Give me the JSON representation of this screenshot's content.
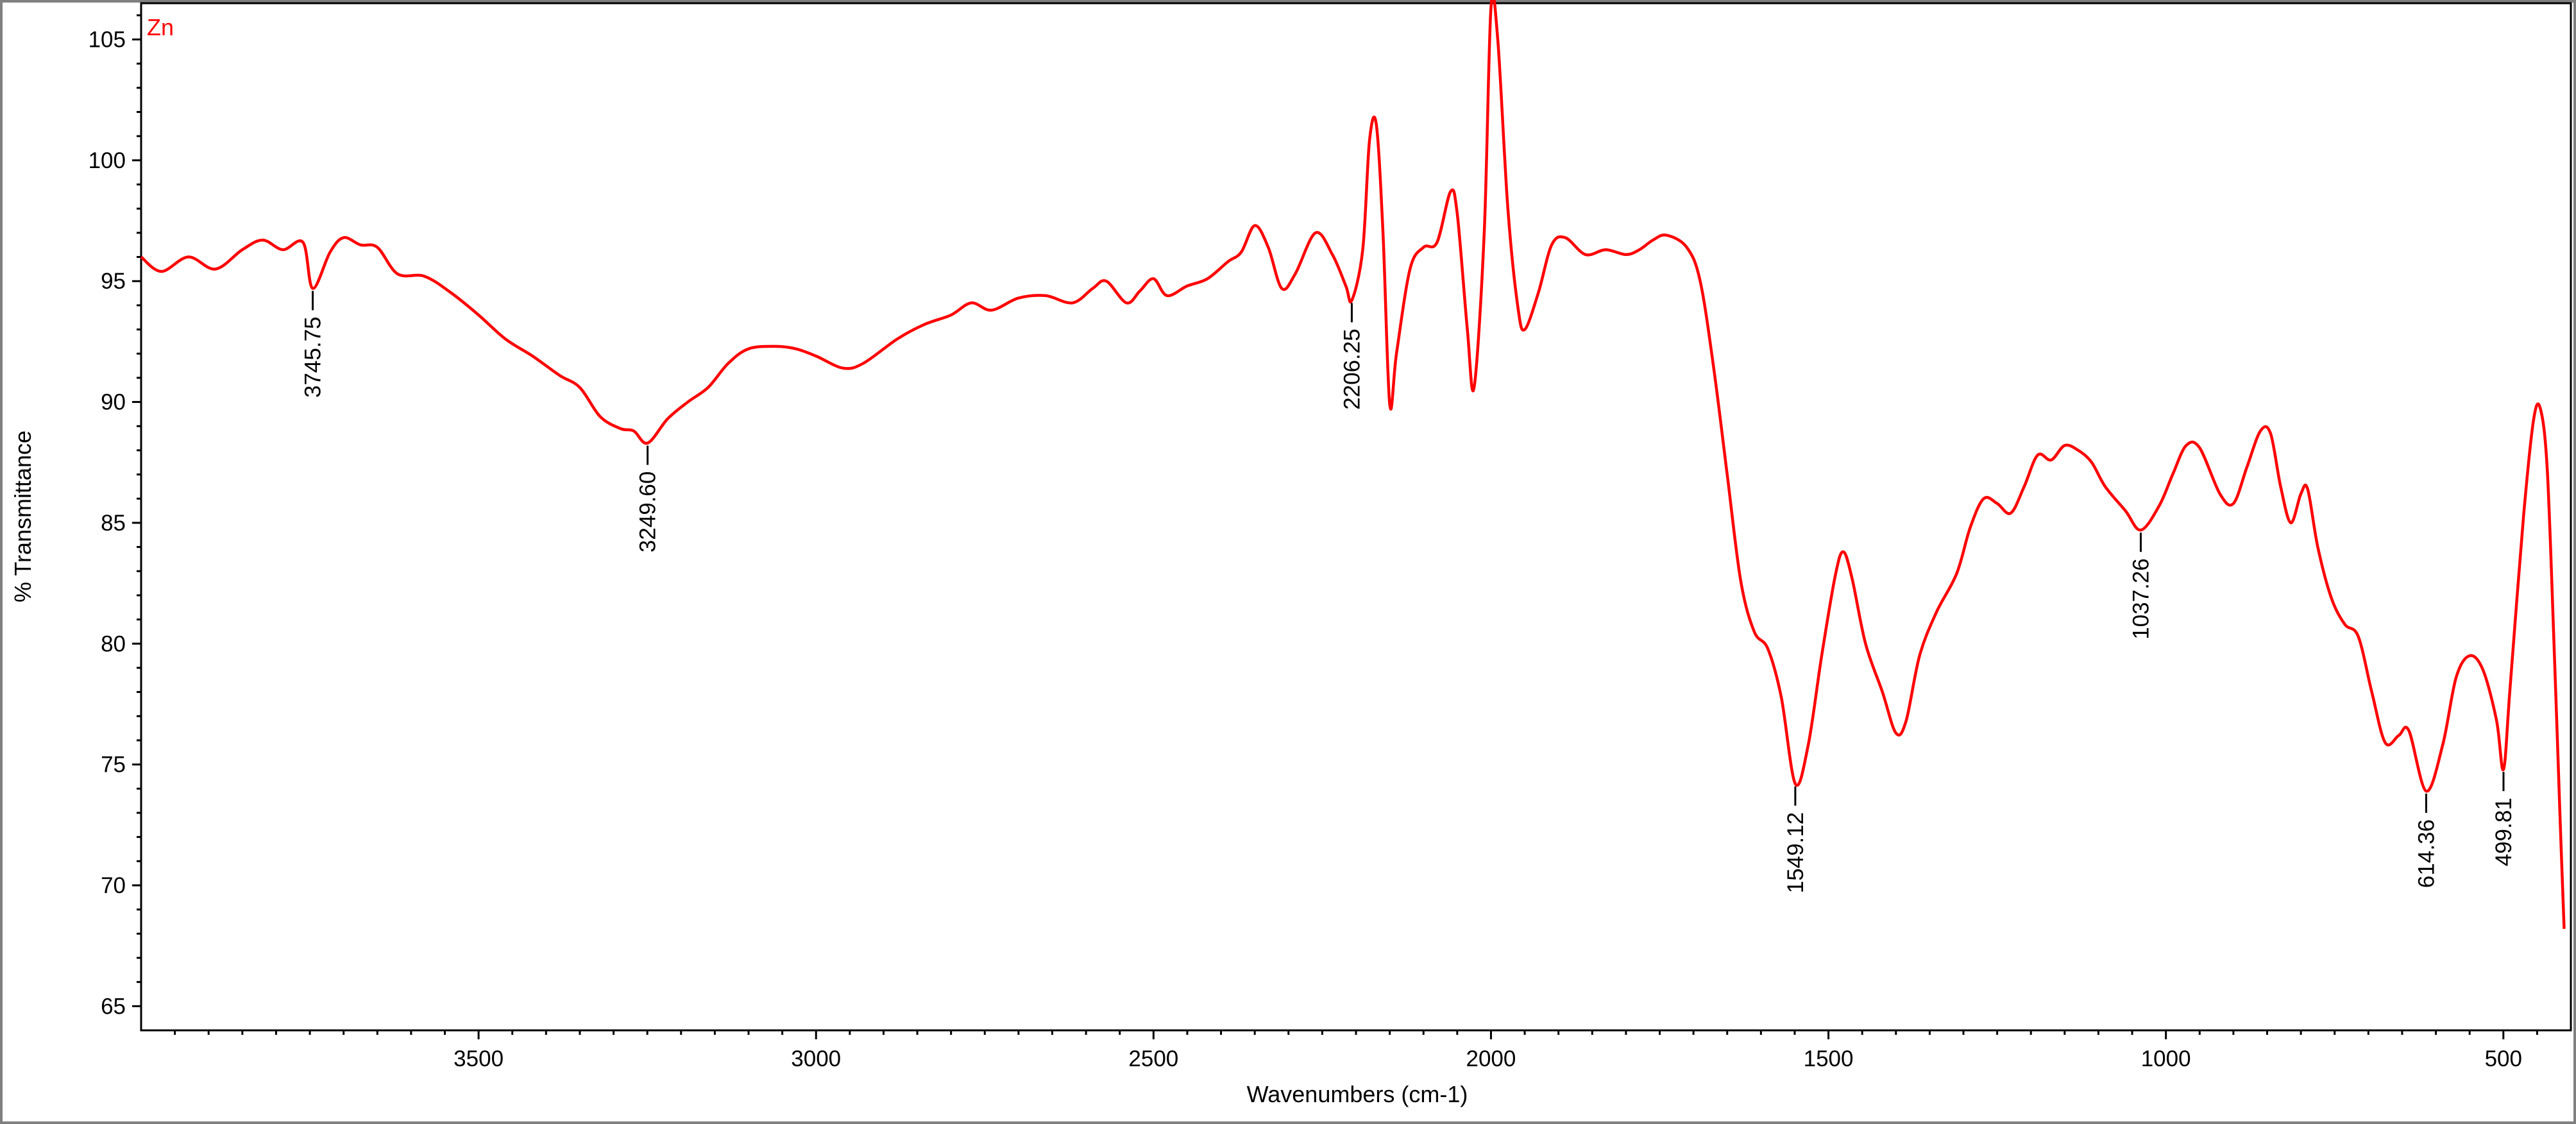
{
  "chart_data": {
    "type": "line",
    "series_label": "Zn",
    "xlabel": "Wavenumbers (cm-1)",
    "ylabel": "% Transmittance",
    "xlim": [
      4000,
      400
    ],
    "ylim": [
      64,
      106.5
    ],
    "x_ticks": [
      3500,
      3000,
      2500,
      2000,
      1500,
      1000,
      500
    ],
    "y_ticks": [
      65,
      70,
      75,
      80,
      85,
      90,
      95,
      100,
      105
    ],
    "colors": {
      "line": "#ff0000",
      "label": "#ff0000",
      "axis": "#000000",
      "frame": "#808080"
    },
    "series": [
      {
        "name": "Zn",
        "points": [
          [
            4000,
            96.0
          ],
          [
            3970,
            95.4
          ],
          [
            3930,
            96.0
          ],
          [
            3890,
            95.5
          ],
          [
            3850,
            96.3
          ],
          [
            3820,
            96.7
          ],
          [
            3790,
            96.3
          ],
          [
            3760,
            96.6
          ],
          [
            3745.75,
            94.7
          ],
          [
            3720,
            96.2
          ],
          [
            3700,
            96.8
          ],
          [
            3675,
            96.5
          ],
          [
            3650,
            96.4
          ],
          [
            3620,
            95.3
          ],
          [
            3580,
            95.2
          ],
          [
            3540,
            94.5
          ],
          [
            3500,
            93.6
          ],
          [
            3460,
            92.6
          ],
          [
            3420,
            91.9
          ],
          [
            3380,
            91.1
          ],
          [
            3350,
            90.6
          ],
          [
            3320,
            89.4
          ],
          [
            3290,
            88.9
          ],
          [
            3270,
            88.8
          ],
          [
            3249.6,
            88.3
          ],
          [
            3220,
            89.3
          ],
          [
            3190,
            90.0
          ],
          [
            3160,
            90.6
          ],
          [
            3130,
            91.6
          ],
          [
            3100,
            92.2
          ],
          [
            3060,
            92.3
          ],
          [
            3030,
            92.2
          ],
          [
            3000,
            91.9
          ],
          [
            2960,
            91.4
          ],
          [
            2930,
            91.6
          ],
          [
            2880,
            92.6
          ],
          [
            2840,
            93.2
          ],
          [
            2800,
            93.6
          ],
          [
            2770,
            94.1
          ],
          [
            2740,
            93.8
          ],
          [
            2700,
            94.3
          ],
          [
            2660,
            94.4
          ],
          [
            2620,
            94.1
          ],
          [
            2590,
            94.7
          ],
          [
            2570,
            95.0
          ],
          [
            2540,
            94.1
          ],
          [
            2520,
            94.6
          ],
          [
            2500,
            95.1
          ],
          [
            2480,
            94.4
          ],
          [
            2450,
            94.8
          ],
          [
            2420,
            95.1
          ],
          [
            2390,
            95.8
          ],
          [
            2370,
            96.2
          ],
          [
            2350,
            97.3
          ],
          [
            2330,
            96.4
          ],
          [
            2310,
            94.7
          ],
          [
            2290,
            95.3
          ],
          [
            2260,
            97.0
          ],
          [
            2235,
            96.1
          ],
          [
            2215,
            94.8
          ],
          [
            2206.25,
            94.2
          ],
          [
            2190,
            96.3
          ],
          [
            2180,
            100.8
          ],
          [
            2170,
            101.5
          ],
          [
            2160,
            97.0
          ],
          [
            2150,
            89.9
          ],
          [
            2140,
            92.0
          ],
          [
            2120,
            95.5
          ],
          [
            2100,
            96.4
          ],
          [
            2080,
            96.6
          ],
          [
            2060,
            98.7
          ],
          [
            2050,
            97.8
          ],
          [
            2035,
            93.0
          ],
          [
            2025,
            90.6
          ],
          [
            2010,
            97.0
          ],
          [
            2000,
            106.3
          ],
          [
            1990,
            105.0
          ],
          [
            1975,
            98.0
          ],
          [
            1960,
            93.9
          ],
          [
            1950,
            93.0
          ],
          [
            1930,
            94.5
          ],
          [
            1910,
            96.5
          ],
          [
            1890,
            96.8
          ],
          [
            1860,
            96.1
          ],
          [
            1830,
            96.3
          ],
          [
            1800,
            96.1
          ],
          [
            1780,
            96.3
          ],
          [
            1760,
            96.7
          ],
          [
            1740,
            96.9
          ],
          [
            1710,
            96.4
          ],
          [
            1690,
            95.0
          ],
          [
            1670,
            91.4
          ],
          [
            1650,
            87.0
          ],
          [
            1630,
            82.6
          ],
          [
            1610,
            80.5
          ],
          [
            1590,
            79.8
          ],
          [
            1570,
            77.8
          ],
          [
            1549.12,
            74.2
          ],
          [
            1530,
            75.8
          ],
          [
            1510,
            79.5
          ],
          [
            1490,
            82.8
          ],
          [
            1478,
            83.8
          ],
          [
            1465,
            82.7
          ],
          [
            1445,
            80.0
          ],
          [
            1420,
            78.0
          ],
          [
            1400,
            76.3
          ],
          [
            1385,
            76.8
          ],
          [
            1365,
            79.5
          ],
          [
            1340,
            81.3
          ],
          [
            1310,
            82.9
          ],
          [
            1290,
            84.8
          ],
          [
            1270,
            86.0
          ],
          [
            1250,
            85.8
          ],
          [
            1230,
            85.4
          ],
          [
            1210,
            86.5
          ],
          [
            1190,
            87.8
          ],
          [
            1170,
            87.6
          ],
          [
            1150,
            88.2
          ],
          [
            1130,
            88.0
          ],
          [
            1110,
            87.5
          ],
          [
            1090,
            86.5
          ],
          [
            1060,
            85.5
          ],
          [
            1037.26,
            84.7
          ],
          [
            1010,
            85.7
          ],
          [
            990,
            87.0
          ],
          [
            970,
            88.2
          ],
          [
            950,
            88.1
          ],
          [
            920,
            86.2
          ],
          [
            900,
            85.8
          ],
          [
            880,
            87.3
          ],
          [
            860,
            88.8
          ],
          [
            845,
            88.7
          ],
          [
            830,
            86.5
          ],
          [
            815,
            85.0
          ],
          [
            800,
            86.2
          ],
          [
            790,
            86.4
          ],
          [
            775,
            84.0
          ],
          [
            755,
            81.9
          ],
          [
            735,
            80.8
          ],
          [
            715,
            80.3
          ],
          [
            695,
            78.0
          ],
          [
            675,
            75.9
          ],
          [
            655,
            76.2
          ],
          [
            640,
            76.4
          ],
          [
            614.36,
            73.9
          ],
          [
            590,
            75.8
          ],
          [
            570,
            78.6
          ],
          [
            550,
            79.5
          ],
          [
            530,
            78.9
          ],
          [
            510,
            76.8
          ],
          [
            499.81,
            74.8
          ],
          [
            490,
            78.2
          ],
          [
            470,
            85.3
          ],
          [
            455,
            89.3
          ],
          [
            445,
            89.7
          ],
          [
            435,
            87.2
          ],
          [
            425,
            80.0
          ],
          [
            415,
            72.0
          ],
          [
            410,
            68.2
          ]
        ]
      }
    ],
    "annotations": [
      {
        "x": 3745.75,
        "y": 94.7,
        "label": "3745.75"
      },
      {
        "x": 3249.6,
        "y": 88.3,
        "label": "3249.60"
      },
      {
        "x": 2206.25,
        "y": 94.2,
        "label": "2206.25"
      },
      {
        "x": 1549.12,
        "y": 74.2,
        "label": "1549.12"
      },
      {
        "x": 1037.26,
        "y": 84.7,
        "label": "1037.26"
      },
      {
        "x": 614.36,
        "y": 73.9,
        "label": "614.36"
      },
      {
        "x": 499.81,
        "y": 74.8,
        "label": "499.81"
      }
    ]
  }
}
